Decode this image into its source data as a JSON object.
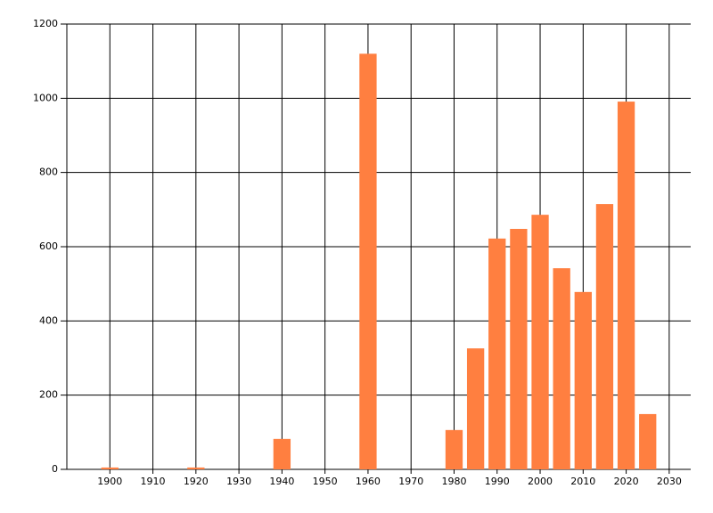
{
  "chart_data": {
    "type": "bar",
    "x": [
      1900,
      1920,
      1940,
      1960,
      1980,
      1985,
      1990,
      1995,
      2000,
      2005,
      2010,
      2015,
      2020,
      2025
    ],
    "values": [
      5,
      5,
      82,
      1120,
      106,
      326,
      622,
      648,
      686,
      542,
      478,
      715,
      991,
      149
    ],
    "color": "#ff7f40",
    "xlim": [
      1890,
      2035
    ],
    "xticks": [
      1900,
      1910,
      1920,
      1930,
      1940,
      1950,
      1960,
      1970,
      1980,
      1990,
      2000,
      2010,
      2020,
      2030
    ],
    "ylim": [
      0,
      1200
    ],
    "yticks": [
      0,
      200,
      400,
      600,
      800,
      1000,
      1200
    ],
    "grid": true
  }
}
